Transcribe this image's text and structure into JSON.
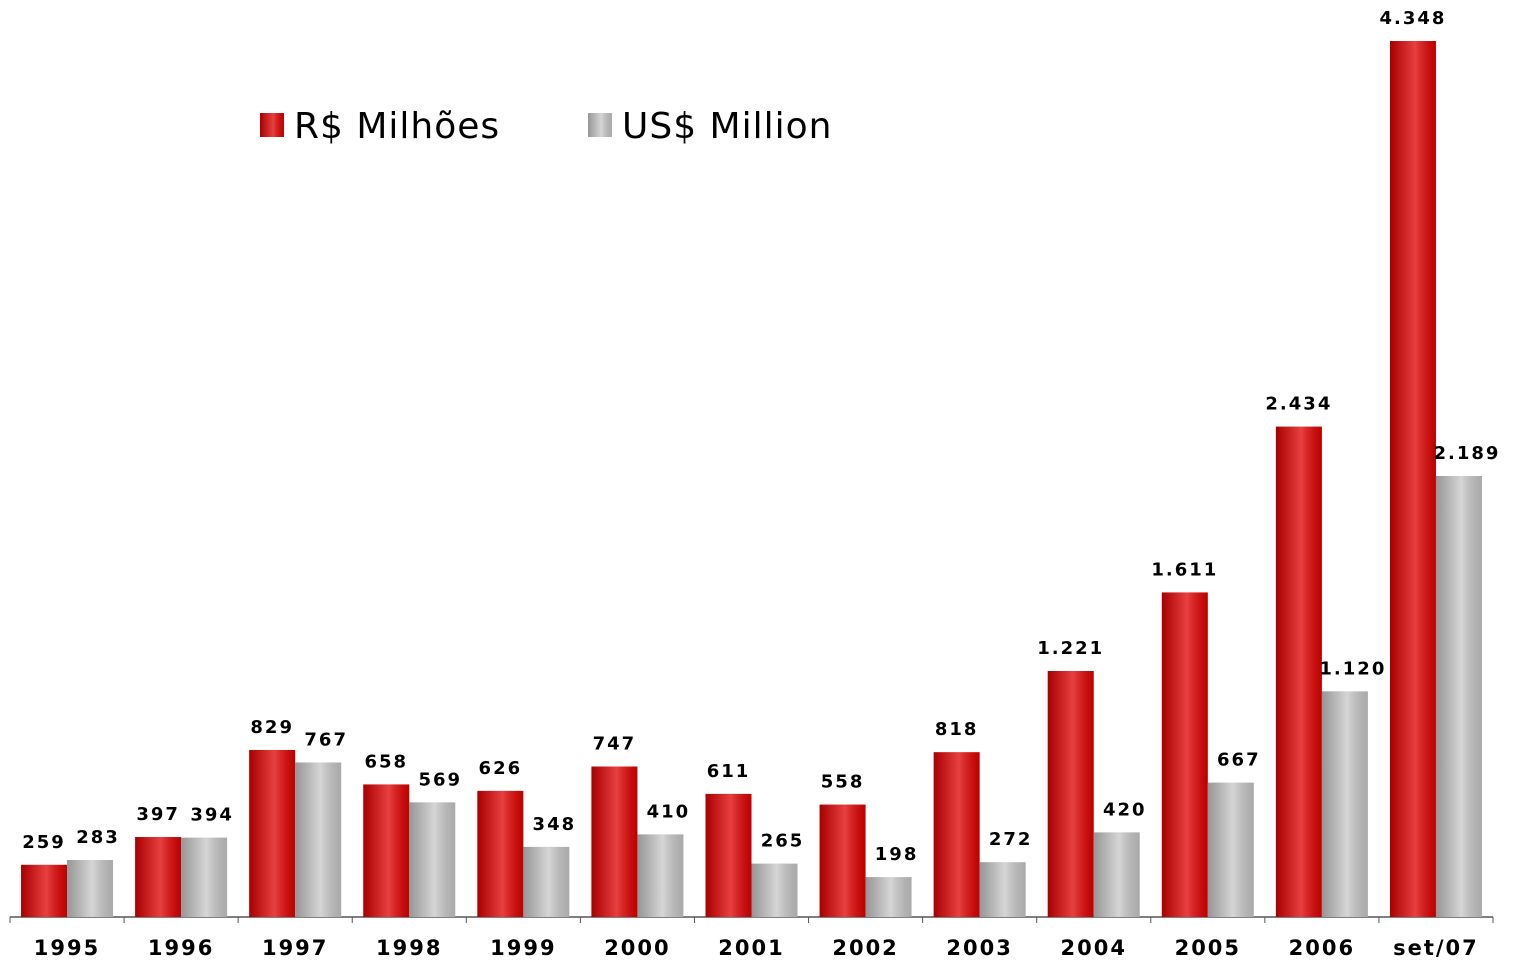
{
  "chart_data": {
    "type": "bar",
    "categories": [
      "1995",
      "1996",
      "1997",
      "1998",
      "1999",
      "2000",
      "2001",
      "2002",
      "2003",
      "2004",
      "2005",
      "2006",
      "set/07"
    ],
    "series": [
      {
        "name": "R$ Milhões",
        "color": "#e00000",
        "values": [
          259,
          397,
          829,
          658,
          626,
          747,
          611,
          558,
          818,
          1221,
          1611,
          2434,
          4348
        ],
        "value_labels": [
          "259",
          "397",
          "829",
          "658",
          "626",
          "747",
          "611",
          "558",
          "818",
          "1.221",
          "1.611",
          "2.434",
          "4.348"
        ]
      },
      {
        "name": "US$ Million",
        "color": "#c8c8c8",
        "values": [
          283,
          394,
          767,
          569,
          348,
          410,
          265,
          198,
          272,
          420,
          667,
          1120,
          2189
        ],
        "value_labels": [
          "283",
          "394",
          "767",
          "569",
          "348",
          "410",
          "265",
          "198",
          "272",
          "420",
          "667",
          "1.120",
          "2.189"
        ]
      }
    ]
  }
}
